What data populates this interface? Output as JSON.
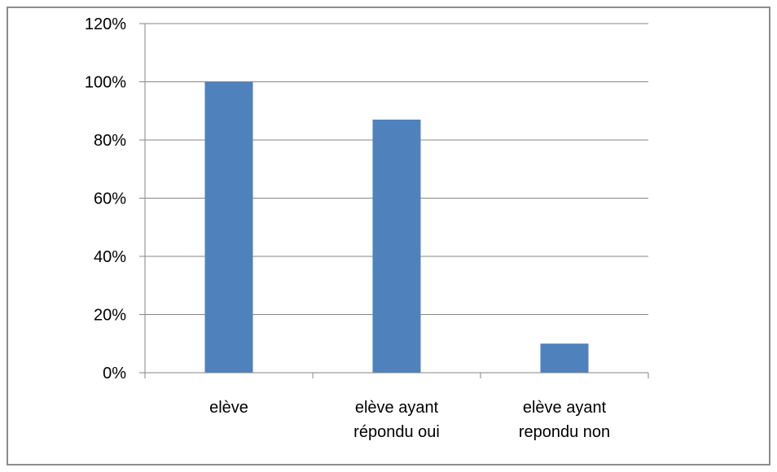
{
  "chart_data": {
    "type": "bar",
    "categories": [
      [
        "elève"
      ],
      [
        "elève ayant",
        "répondu oui"
      ],
      [
        "elève ayant",
        "repondu non"
      ]
    ],
    "values": [
      100,
      87,
      10
    ],
    "ylim": [
      0,
      120
    ],
    "yticks": [
      0,
      20,
      40,
      60,
      80,
      100,
      120
    ],
    "ytick_labels": [
      "0%",
      "20%",
      "40%",
      "60%",
      "80%",
      "100%",
      "120%"
    ],
    "grid": true,
    "legend": "none",
    "colors": {
      "bar": "#4f81bd",
      "grid": "#868686",
      "axis": "#868686"
    }
  }
}
